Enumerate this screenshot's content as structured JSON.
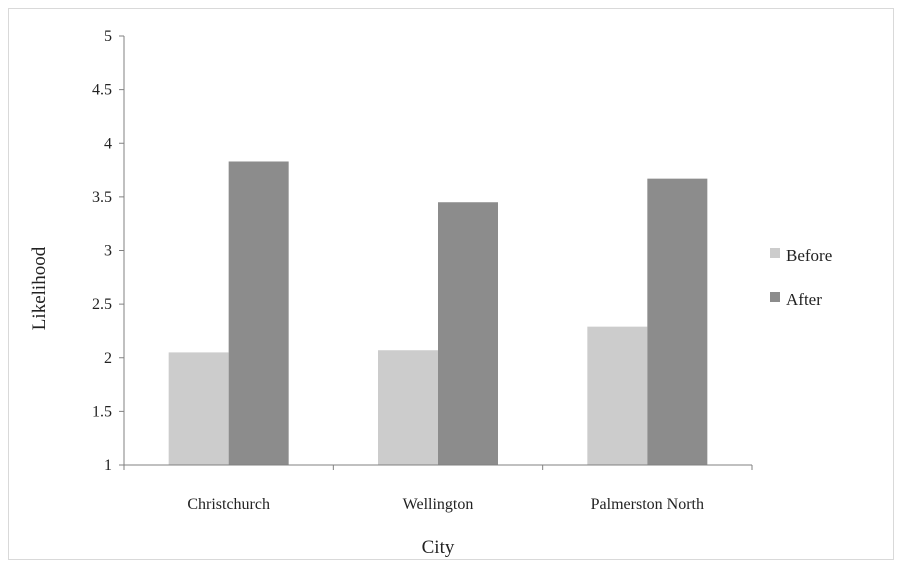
{
  "chart_data": {
    "type": "bar",
    "title": "",
    "xlabel": "City",
    "ylabel": "Likelihood",
    "categories": [
      "Christchurch",
      "Wellington",
      "Palmerston North"
    ],
    "series": [
      {
        "name": "Before",
        "values": [
          2.05,
          2.07,
          2.29
        ],
        "color": "#cccccc"
      },
      {
        "name": "After",
        "values": [
          3.83,
          3.45,
          3.67
        ],
        "color": "#8c8c8c"
      }
    ],
    "ylim": [
      1,
      5
    ],
    "yticks": [
      "1",
      "1.5",
      "2",
      "2.5",
      "3",
      "3.5",
      "4",
      "4.5",
      "5"
    ],
    "grid": false,
    "legend_position": "right"
  }
}
